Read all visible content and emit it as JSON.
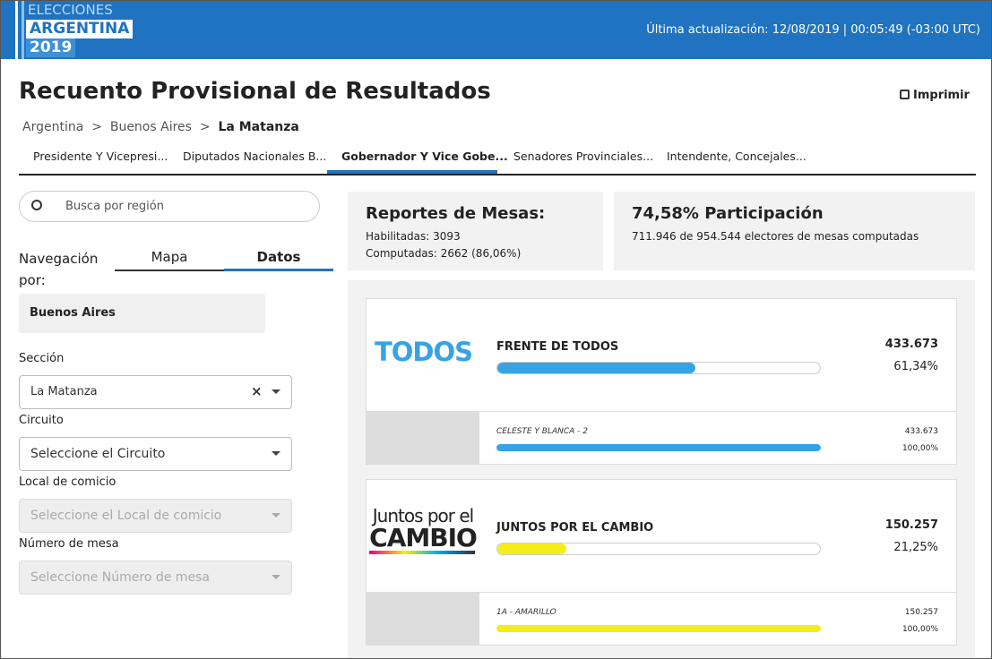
{
  "header": {
    "logo": {
      "line1": "ELECCIONES",
      "line2": "ARGENTINA",
      "line3": "2019"
    },
    "last_update": "Última actualización: 12/08/2019 | 00:05:49 (-03:00 UTC)"
  },
  "title": "Recuento Provisional de Resultados",
  "print": "Imprimir",
  "breadcrumb": [
    "Argentina",
    ">",
    "Buenos Aires",
    ">",
    "La Matanza"
  ],
  "tabs": [
    "Presidente Y Vicepresi...",
    "Diputados Nacionales B...",
    "Gobernador Y Vice Gobe...",
    "Senadores Provinciales...",
    "Intendente, Concejales..."
  ],
  "active_tab": 2,
  "search_placeholder": "Busca por región",
  "navigation": {
    "label": "Navegación por:",
    "tabs": [
      "Mapa",
      "Datos"
    ],
    "active": 1
  },
  "region": "Buenos Aires",
  "filters": [
    {
      "label": "Sección",
      "value": "La Matanza",
      "disabled": false
    },
    {
      "label": "Circuito",
      "value": "Seleccione el Circuito",
      "disabled": false
    },
    {
      "label": "Local de comicio",
      "value": "Seleccione el Local de comicio",
      "disabled": true
    },
    {
      "label": "Número de mesa",
      "value": "Seleccione Número de mesa",
      "disabled": true
    }
  ],
  "summary": {
    "reports": {
      "title": "Reportes de Mesas:",
      "lines": [
        "Habilitadas: 3093",
        "Computadas: 2662 (86,06%)"
      ]
    },
    "participation": {
      "title": "74,58% Participación",
      "line": "711.946 de 954.544 electores de mesas computadas"
    }
  },
  "parties": [
    {
      "logo": [
        "TODOS"
      ],
      "name": "FRENTE DE TODOS",
      "votes": "433.673",
      "percent": {
        "value": 61.34,
        "label": "61,34%"
      },
      "color": "#36a3e6",
      "lists": [
        {
          "name": "CELESTE Y BLANCA - 2",
          "votes": "433.673",
          "percent": {
            "value": 100,
            "label": "100,00%"
          }
        }
      ]
    },
    {
      "logo": [
        "Juntos por el",
        "CAMBIO"
      ],
      "name": "JUNTOS POR EL CAMBIO",
      "votes": "150.257",
      "percent": {
        "value": 21.25,
        "label": "21,25%"
      },
      "color": "#f5ec1c",
      "lists": [
        {
          "name": "1A - AMARILLO",
          "votes": "150.257",
          "percent": {
            "value": 100,
            "label": "100,00%"
          }
        }
      ]
    }
  ]
}
